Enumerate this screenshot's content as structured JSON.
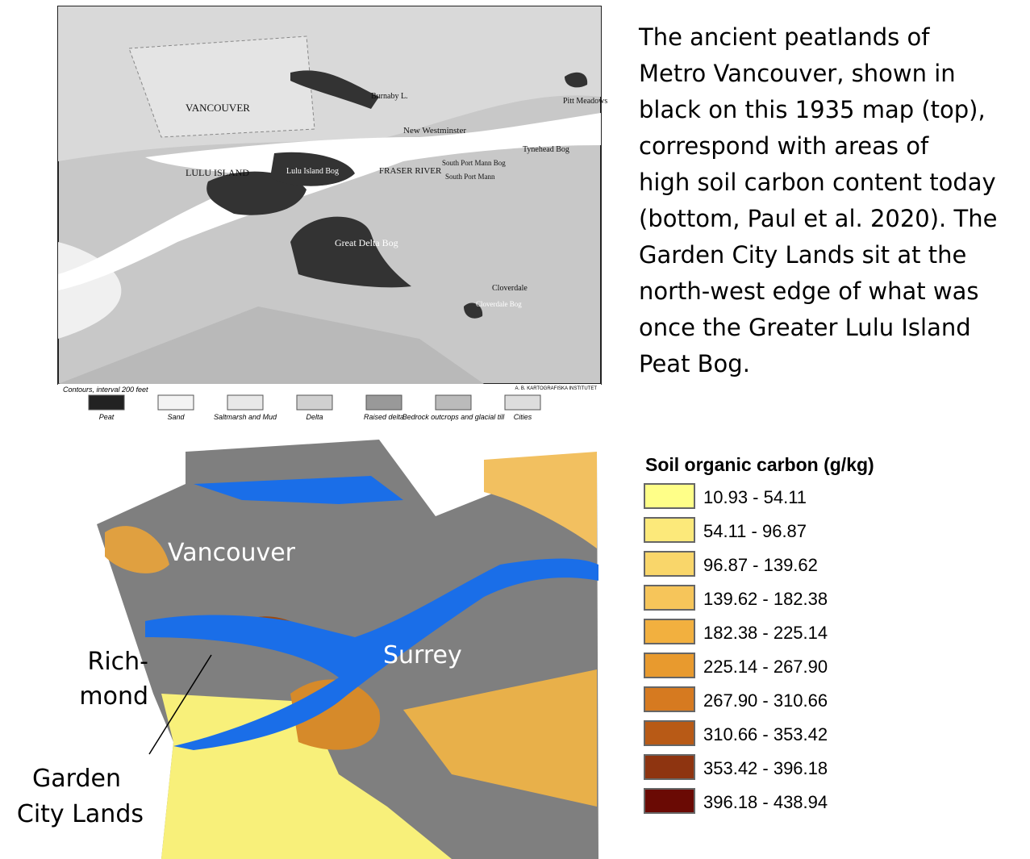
{
  "caption": {
    "lines": [
      "The ancient peatlands of",
      "Metro Vancouver, shown in",
      "black on this 1935 map (top),",
      "correspond with areas of",
      "high soil carbon content today",
      "(bottom, Paul et al. 2020). The",
      "Garden City Lands sit at the",
      "north-west edge of what was",
      "once the Greater Lulu Island",
      "Peat Bog."
    ]
  },
  "top_map": {
    "labels": [
      "VANCOUVER",
      "Burnaby L.",
      "Pitt Meadows",
      "New Westminster",
      "LULU ISLAND",
      "Lulu Island Bog",
      "South Port Mann Bog",
      "South Port Mann",
      "Tynehead Bog",
      "FRASER RIVER",
      "Great Delta Bog",
      "Cloverdale",
      "Cloverdale Bog"
    ],
    "contours": "Contours, interval 200 feet",
    "credit": "A. B. KARTOGRAFISKA INSTITUTET",
    "legend": [
      "Peat",
      "Sand",
      "Saltmarsh and Mud",
      "Delta",
      "Raised delta",
      "Bedrock outcrops and glacial till",
      "Cities"
    ]
  },
  "bottom_map": {
    "labels": {
      "vancouver": "Vancouver",
      "surrey": "Surrey",
      "richmond": [
        "Rich-",
        "mond"
      ],
      "garden_city": [
        "Garden",
        "City Lands"
      ]
    },
    "legend": {
      "title": "Soil organic carbon (g/kg)",
      "items": [
        {
          "label": "10.93 - 54.11",
          "color": "#ffff88"
        },
        {
          "label": "54.11 - 96.87",
          "color": "#fce97a"
        },
        {
          "label": "96.87 - 139.62",
          "color": "#f9d66a"
        },
        {
          "label": "139.62 - 182.38",
          "color": "#f6c55a"
        },
        {
          "label": "182.38 - 225.14",
          "color": "#f2b03f"
        },
        {
          "label": "225.14 - 267.90",
          "color": "#e89a2e"
        },
        {
          "label": "267.90 - 310.66",
          "color": "#d67a20"
        },
        {
          "label": "310.66 - 353.42",
          "color": "#b85a16"
        },
        {
          "label": "353.42 - 396.18",
          "color": "#8e3410"
        },
        {
          "label": "396.18 - 438.94",
          "color": "#6a0a04"
        }
      ]
    }
  }
}
